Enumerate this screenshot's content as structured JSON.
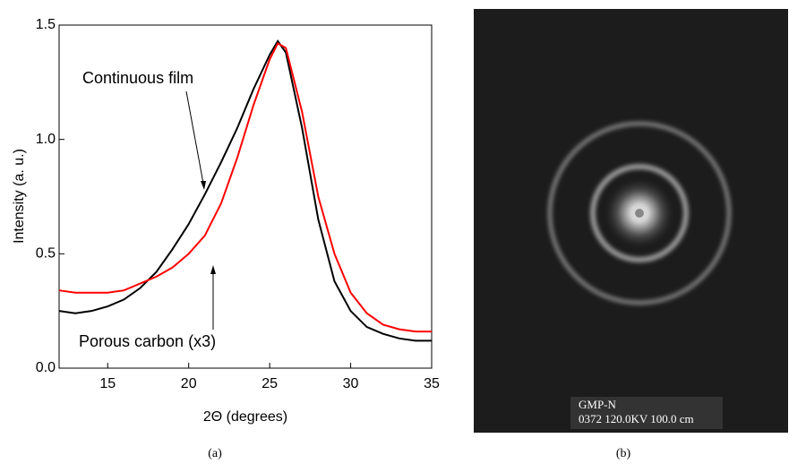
{
  "chart_data": {
    "type": "line",
    "xlabel": "2Θ (degrees)",
    "ylabel": "Intensity (a. u.)",
    "x": [
      12,
      13,
      14,
      15,
      16,
      17,
      18,
      19,
      20,
      21,
      22,
      23,
      24,
      25,
      25.5,
      26,
      27,
      28,
      29,
      30,
      31,
      32,
      33,
      34,
      35
    ],
    "series": [
      {
        "name": "Continuous film",
        "color": "#000000",
        "values": [
          0.25,
          0.24,
          0.25,
          0.27,
          0.3,
          0.35,
          0.42,
          0.52,
          0.63,
          0.76,
          0.9,
          1.05,
          1.22,
          1.37,
          1.43,
          1.38,
          1.05,
          0.65,
          0.38,
          0.25,
          0.18,
          0.15,
          0.13,
          0.12,
          0.12
        ]
      },
      {
        "name": "Porous carbon (x3)",
        "color": "#ff0000",
        "values": [
          0.34,
          0.33,
          0.33,
          0.33,
          0.34,
          0.37,
          0.4,
          0.44,
          0.5,
          0.58,
          0.72,
          0.92,
          1.15,
          1.35,
          1.42,
          1.4,
          1.12,
          0.75,
          0.5,
          0.33,
          0.24,
          0.19,
          0.17,
          0.16,
          0.16
        ]
      }
    ],
    "xlim": [
      12,
      35
    ],
    "xticks": [
      15,
      20,
      25,
      30,
      35
    ],
    "ylim": [
      0,
      1.5
    ],
    "yticks": [
      {
        "value": 0,
        "label": "0.0"
      },
      0.5,
      {
        "value": 1,
        "label": "1.0"
      },
      1.5
    ],
    "grid": false
  },
  "figure": {
    "panel_a": "(a)",
    "panel_b": "(b)",
    "image_caption": [
      "GMP-N",
      "0372 120.0KV 100.0 cm"
    ]
  }
}
